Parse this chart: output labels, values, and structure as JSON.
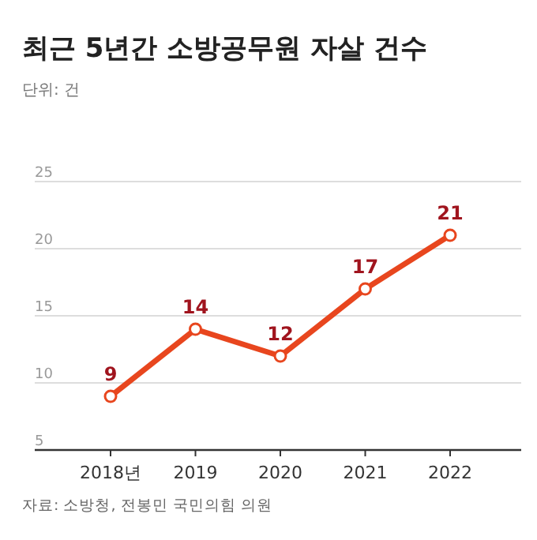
{
  "chart_data": {
    "type": "line",
    "title": "최근 5년간 소방공무원 자살 건수",
    "subtitle": "단위: 건",
    "categories": [
      "2018년",
      "2019",
      "2020",
      "2021",
      "2022"
    ],
    "series": [
      {
        "color": "#e8461e",
        "values": [
          9,
          14,
          12,
          17,
          21
        ]
      }
    ],
    "ylim": [
      5,
      25
    ],
    "yticks": [
      5,
      10,
      15,
      20,
      25
    ],
    "grid": "y",
    "marker": "circle",
    "line_style": "solid",
    "data_labels": true,
    "annotations": [
      "자료: 소방청, 전봉민 국민의힘 의원"
    ]
  }
}
